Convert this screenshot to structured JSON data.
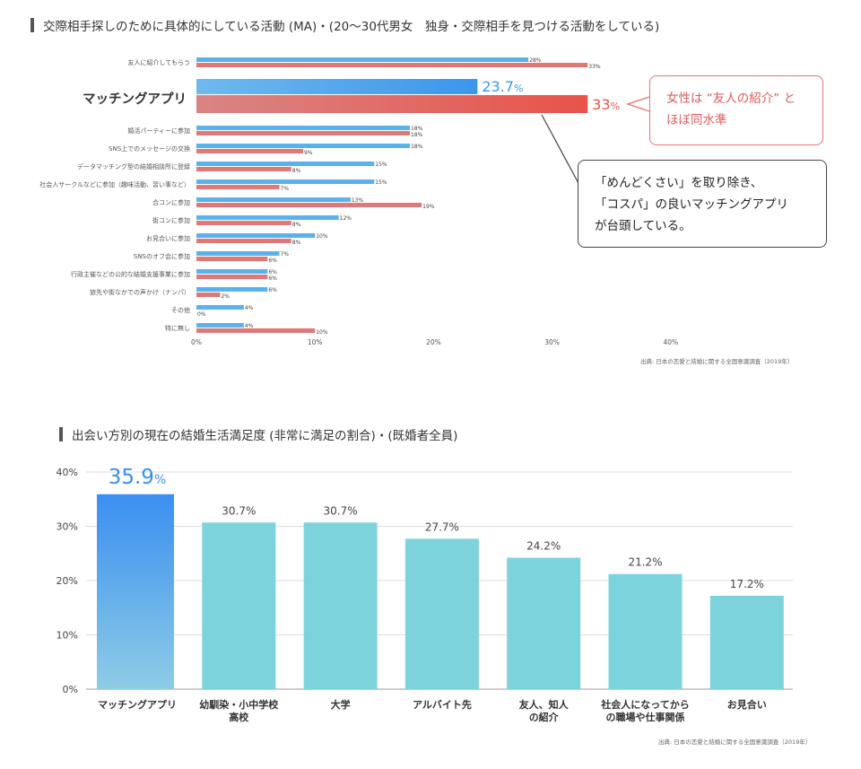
{
  "colors": {
    "male": "#5ab2ec",
    "female": "#e07878",
    "highlight_male": "#3b96ec",
    "highlight_female": "#e8534a",
    "bar2": "#7dd3dc",
    "bar2_highlight_top": "#3a8ff0",
    "bar2_highlight_bottom": "#8ecce6"
  },
  "chart1": {
    "title": "交際相手探しのために具体的にしている活動 (MA)・(20〜30代男女　独身・交際相手を見つける活動をしている)",
    "source": "出典: 日本の恋愛と結婚に関する全国意識調査（2019年）",
    "callout_female": "女性は “友人の紹介” と\nほぼ同水準",
    "callout_app": "「めんどくさい」を取り除き、\n「コスパ」の良いマッチングアプリ\nが台頭している。",
    "chart_data": {
      "type": "bar",
      "orientation": "horizontal",
      "categories": [
        "友人に紹介してもらう",
        "マッチングアプリ",
        "婚活パーティーに参加",
        "SNS上でのメッセージの交換",
        "データマッチング型の結婚相談所に登録",
        "社会人サークルなどに参加（趣味活動、習い事など）",
        "合コンに参加",
        "街コンに参加",
        "お見合いに参加",
        "SNSのオフ会に参加",
        "行政主催などの公的な結婚支援事業に参加",
        "旅先や街なかでの声かけ（ナンパ）",
        "その他",
        "特に無し"
      ],
      "series": [
        {
          "values": [
            28,
            23.7,
            18,
            18,
            15,
            15,
            13,
            12,
            10,
            7,
            6,
            6,
            4,
            4
          ]
        },
        {
          "values": [
            33,
            33,
            18,
            9,
            8,
            7,
            19,
            8,
            8,
            6,
            6,
            2,
            0,
            10
          ]
        }
      ],
      "labels_male": [
        "28%",
        "23.7",
        "18%",
        "18%",
        "15%",
        "15%",
        "13%",
        "12%",
        "10%",
        "7%",
        "6%",
        "6%",
        "4%",
        "4%"
      ],
      "labels_female": [
        "33%",
        "33",
        "18%",
        "9%",
        "8%",
        "7%",
        "19%",
        "8%",
        "8%",
        "6%",
        "6%",
        "2%",
        "0%",
        "10%"
      ],
      "highlight_unit": "%",
      "xlim": [
        0,
        40
      ],
      "xticks": [
        "0%",
        "10%",
        "20%",
        "30%",
        "40%"
      ],
      "highlight_index": 1
    }
  },
  "chart2": {
    "title": "出会い方別の現在の結婚生活満足度 (非常に満足の割合)・(既婚者全員)",
    "source": "出典: 日本の恋愛と結婚に関する全国意識調査（2019年）",
    "chart_data": {
      "type": "bar",
      "categories": [
        "マッチングアプリ",
        "幼馴染・小中学校\n高校",
        "大学",
        "アルバイト先",
        "友人、知人\nの紹介",
        "社会人になってから\nの職場や仕事関係",
        "お見合い"
      ],
      "values": [
        35.9,
        30.7,
        30.7,
        27.7,
        24.2,
        21.2,
        17.2
      ],
      "value_labels": [
        "35.9",
        "30.7%",
        "30.7%",
        "27.7%",
        "24.2%",
        "21.2%",
        "17.2%"
      ],
      "highlight_unit": "%",
      "ylim": [
        0,
        40
      ],
      "yticks": [
        "0%",
        "10%",
        "20%",
        "30%",
        "40%"
      ],
      "grid": true,
      "highlight_index": 0
    }
  }
}
